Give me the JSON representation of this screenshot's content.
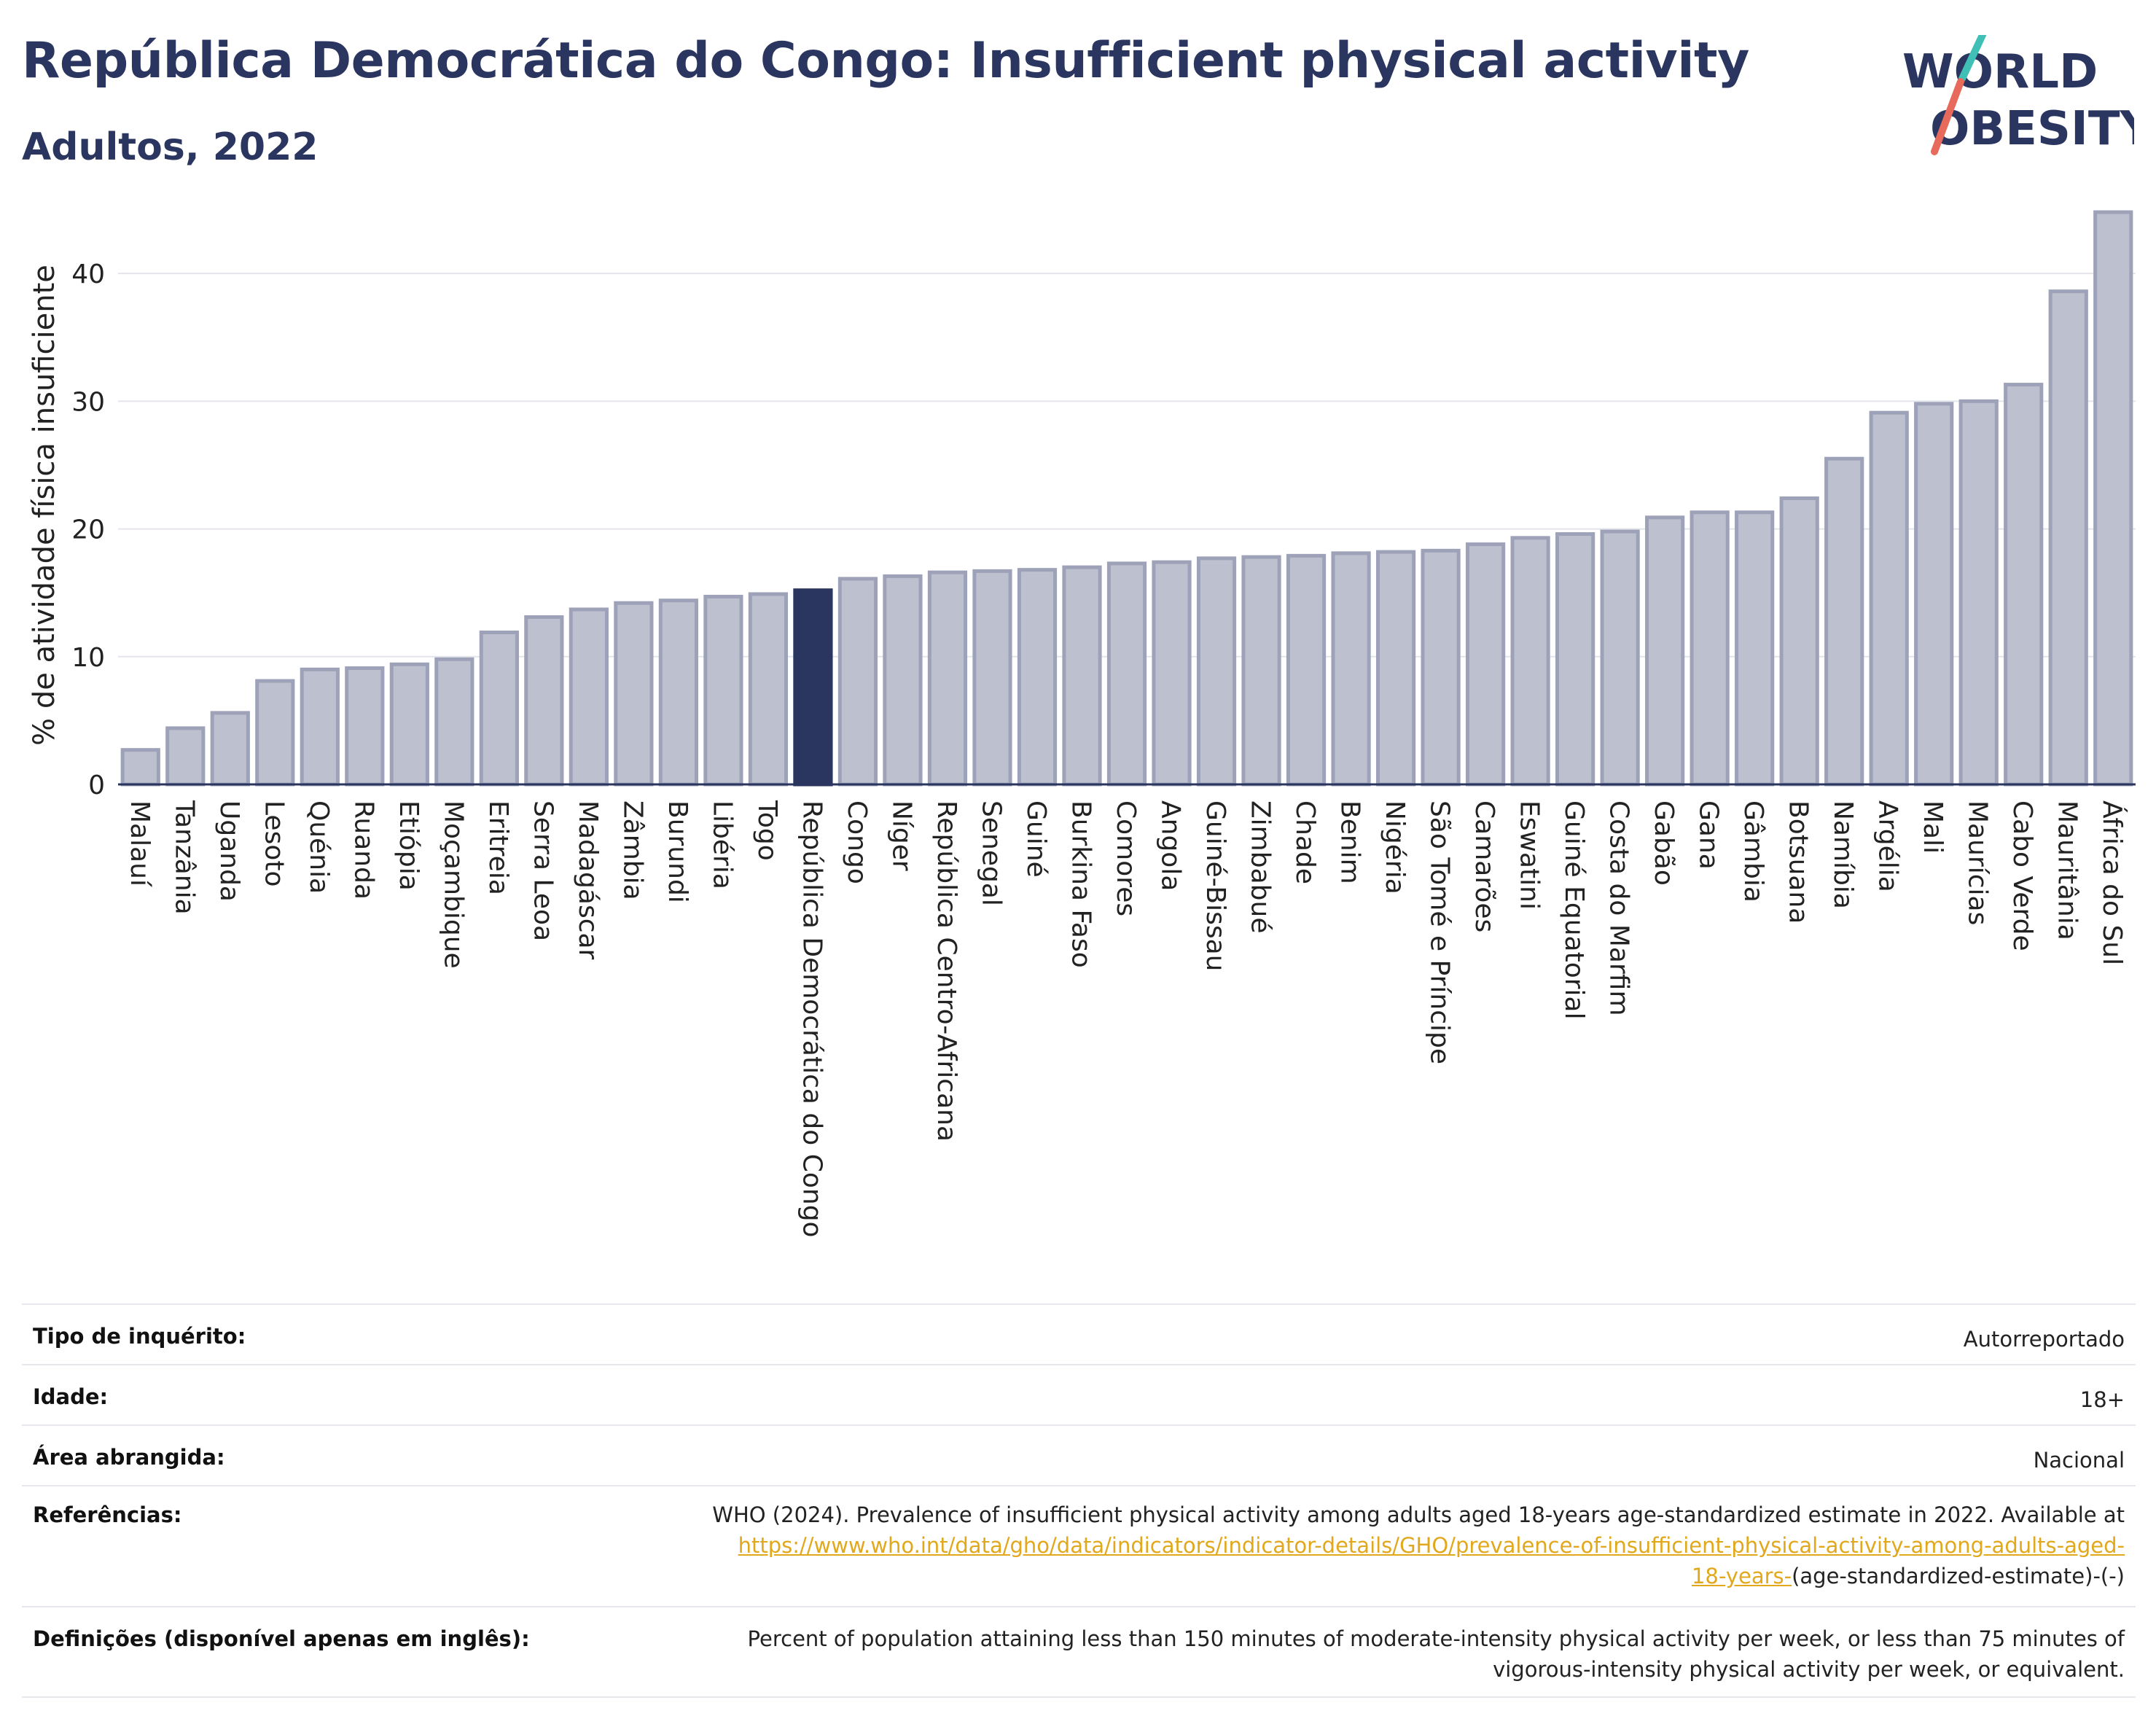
{
  "header": {
    "title": "República Democrática do Congo: Insufficient physical activity",
    "subtitle": "Adultos, 2022"
  },
  "logo": {
    "line1": "WORLD",
    "line2": "OBESITY"
  },
  "colors": {
    "highlight": "#2b3660",
    "bar": "#bcc0cf",
    "bar_stroke": "#9da2b8",
    "link": "#e2a81c",
    "title": "#2b3660"
  },
  "chart_data": {
    "type": "bar",
    "ylabel": "% de atividade física insuficiente",
    "ylim": [
      0,
      46
    ],
    "yticks": [
      0,
      10,
      20,
      30,
      40
    ],
    "grid": true,
    "highlight": "República Democrática do Congo",
    "categories": [
      "Malauí",
      "Tanzânia",
      "Uganda",
      "Lesoto",
      "Quénia",
      "Ruanda",
      "Etiópia",
      "Moçambique",
      "Eritreia",
      "Serra Leoa",
      "Madagáscar",
      "Zâmbia",
      "Burundi",
      "Libéria",
      "Togo",
      "República Democrática do Congo",
      "Congo",
      "Níger",
      "República Centro-Africana",
      "Senegal",
      "Guiné",
      "Burkina Faso",
      "Comores",
      "Angola",
      "Guiné-Bissau",
      "Zimbabué",
      "Chade",
      "Benim",
      "Nigéria",
      "São Tomé e Príncipe",
      "Camarões",
      "Eswatini",
      "Guiné Equatorial",
      "Costa do Marfim",
      "Gabão",
      "Gana",
      "Gâmbia",
      "Botsuana",
      "Namíbia",
      "Argélia",
      "Mali",
      "Maurícias",
      "Cabo Verde",
      "Mauritânia",
      "África do Sul"
    ],
    "values": [
      2.7,
      4.4,
      5.6,
      8.1,
      9.0,
      9.1,
      9.4,
      9.8,
      11.9,
      13.1,
      13.7,
      14.2,
      14.4,
      14.7,
      14.9,
      15.2,
      16.1,
      16.3,
      16.6,
      16.7,
      16.8,
      17.0,
      17.3,
      17.4,
      17.7,
      17.8,
      17.9,
      18.1,
      18.2,
      18.3,
      18.8,
      19.3,
      19.6,
      19.8,
      20.9,
      21.3,
      21.3,
      22.4,
      25.5,
      29.1,
      29.8,
      30.0,
      31.3,
      38.6,
      44.8
    ]
  },
  "info": [
    {
      "label": "Tipo de inquérito:",
      "value": "Autorreportado"
    },
    {
      "label": "Idade:",
      "value": "18+"
    },
    {
      "label": "Área abrangida:",
      "value": "Nacional"
    },
    {
      "label": "Referências:",
      "value": "WHO (2024). Prevalence of insufficient physical activity among adults aged 18-years age-standardized estimate in 2022. Available at",
      "link_line1": "https://www.who.int/data/gho/data/indicators/indicator-details/GHO/prevalence-of-insufficient-physical-activity-among-adults-aged-",
      "link_line2": "18-years-",
      "tail": "(age-standardized-estimate)-(-)"
    },
    {
      "label": "Definições (disponível apenas em inglês):",
      "value": "Percent of population attaining less than 150 minutes of moderate-intensity physical activity per week, or less than 75 minutes of",
      "value2": "vigorous-intensity physical activity per week, or equivalent."
    }
  ]
}
